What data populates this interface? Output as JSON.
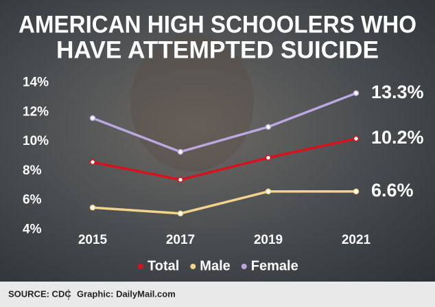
{
  "chart_data": {
    "type": "line",
    "title": [
      "AMERICAN HIGH SCHOOLERS WHO",
      "HAVE ATTEMPTED SUICIDE"
    ],
    "categories": [
      "2015",
      "2017",
      "2019",
      "2021"
    ],
    "series": [
      {
        "name": "Total",
        "color": "#d8121c",
        "values": [
          8.6,
          7.4,
          8.9,
          10.2
        ],
        "value_labels": [
          null,
          null,
          null,
          "10.2%"
        ]
      },
      {
        "name": "Male",
        "color": "#f2d38a",
        "values": [
          5.5,
          5.1,
          6.6,
          6.6
        ],
        "value_labels": [
          null,
          null,
          null,
          "6.6%"
        ]
      },
      {
        "name": "Female",
        "color": "#bba7e2",
        "values": [
          11.6,
          9.3,
          11.0,
          13.3
        ],
        "value_labels": [
          null,
          null,
          null,
          "13.3%"
        ]
      }
    ],
    "ylim": [
      3.5,
      14.5
    ],
    "yticks": [
      {
        "value": 4,
        "label": "4%"
      },
      {
        "value": 6,
        "label": "6%"
      },
      {
        "value": 8,
        "label": "8%"
      },
      {
        "value": 10,
        "label": "10%"
      },
      {
        "value": 12,
        "label": "12%"
      },
      {
        "value": 14,
        "label": "14%"
      }
    ],
    "grid": false,
    "legend": "bottom",
    "source": "SOURCE: CDC",
    "credit": "Graphic: DailyMail.com"
  }
}
